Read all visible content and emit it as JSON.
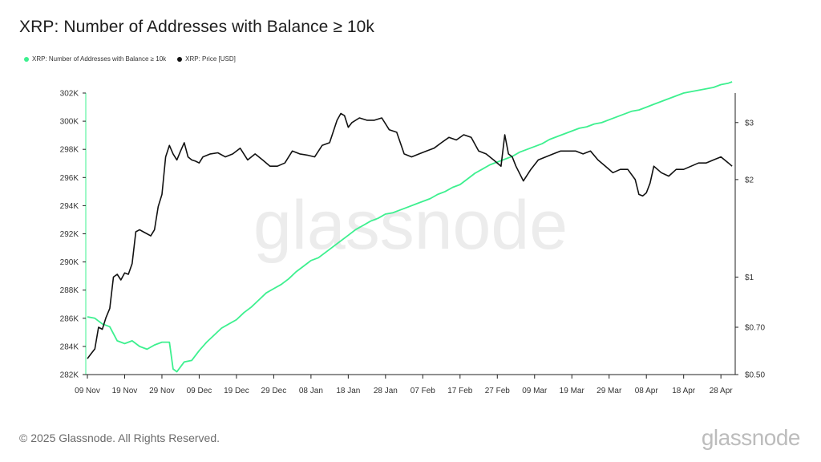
{
  "title": "XRP: Number of Addresses with Balance ≥ 10k",
  "footer": "© 2025 Glassnode. All Rights Reserved.",
  "brand": "glassnode",
  "watermark": "glassnode",
  "colors": {
    "addresses": "#3df08f",
    "price": "#111111"
  },
  "chart_data": {
    "type": "line",
    "legend_position": "top-left",
    "grid": false,
    "x_ticks": [
      "09 Nov",
      "19 Nov",
      "29 Nov",
      "09 Dec",
      "19 Dec",
      "29 Dec",
      "08 Jan",
      "18 Jan",
      "28 Jan",
      "07 Feb",
      "17 Feb",
      "27 Feb",
      "09 Mar",
      "19 Mar",
      "29 Mar",
      "08 Apr",
      "18 Apr",
      "28 Apr"
    ],
    "y_left": {
      "ticks": [
        "282K",
        "284K",
        "286K",
        "288K",
        "290K",
        "292K",
        "294K",
        "296K",
        "298K",
        "300K",
        "302K"
      ],
      "range": [
        282000,
        302000
      ]
    },
    "y_right": {
      "scale": "log",
      "ticks": [
        {
          "v": 0.5,
          "label": "$0.50"
        },
        {
          "v": 0.7,
          "label": "$0.70"
        },
        {
          "v": 1,
          "label": "$1"
        },
        {
          "v": 2,
          "label": "$2"
        },
        {
          "v": 3,
          "label": "$3"
        }
      ],
      "range": [
        0.5,
        3.7
      ]
    },
    "series": [
      {
        "name": "XRP: Number of Addresses with Balance ≥ 10k",
        "axis": "left",
        "x": [
          "2024-11-09",
          "2024-11-11",
          "2024-11-13",
          "2024-11-15",
          "2024-11-17",
          "2024-11-19",
          "2024-11-21",
          "2024-11-23",
          "2024-11-25",
          "2024-11-27",
          "2024-11-29",
          "2024-11-30",
          "2024-12-01",
          "2024-12-02",
          "2024-12-03",
          "2024-12-05",
          "2024-12-07",
          "2024-12-09",
          "2024-12-11",
          "2024-12-13",
          "2024-12-15",
          "2024-12-17",
          "2024-12-19",
          "2024-12-21",
          "2024-12-23",
          "2024-12-25",
          "2024-12-27",
          "2024-12-29",
          "2024-12-31",
          "2025-01-02",
          "2025-01-04",
          "2025-01-06",
          "2025-01-08",
          "2025-01-10",
          "2025-01-12",
          "2025-01-14",
          "2025-01-16",
          "2025-01-18",
          "2025-01-20",
          "2025-01-22",
          "2025-01-24",
          "2025-01-26",
          "2025-01-28",
          "2025-01-30",
          "2025-02-01",
          "2025-02-03",
          "2025-02-05",
          "2025-02-07",
          "2025-02-09",
          "2025-02-11",
          "2025-02-13",
          "2025-02-15",
          "2025-02-17",
          "2025-02-19",
          "2025-02-21",
          "2025-02-23",
          "2025-02-25",
          "2025-02-27",
          "2025-03-01",
          "2025-03-03",
          "2025-03-05",
          "2025-03-07",
          "2025-03-09",
          "2025-03-11",
          "2025-03-13",
          "2025-03-15",
          "2025-03-17",
          "2025-03-19",
          "2025-03-21",
          "2025-03-23",
          "2025-03-25",
          "2025-03-27",
          "2025-03-29",
          "2025-03-31",
          "2025-04-02",
          "2025-04-04",
          "2025-04-06",
          "2025-04-08",
          "2025-04-10",
          "2025-04-12",
          "2025-04-14",
          "2025-04-16",
          "2025-04-18",
          "2025-04-20",
          "2025-04-22",
          "2025-04-24",
          "2025-04-26",
          "2025-04-28",
          "2025-04-30",
          "2025-05-01"
        ],
        "values": [
          286100,
          286000,
          285600,
          285400,
          284400,
          284200,
          284400,
          284000,
          283800,
          284100,
          284300,
          284300,
          284300,
          282400,
          282200,
          282900,
          283000,
          283700,
          284300,
          284800,
          285300,
          285600,
          285900,
          286400,
          286800,
          287300,
          287800,
          288100,
          288400,
          288800,
          289300,
          289700,
          290100,
          290300,
          290700,
          291100,
          291500,
          291900,
          292300,
          292600,
          292900,
          293100,
          293400,
          293500,
          293700,
          293900,
          294100,
          294300,
          294500,
          294800,
          295000,
          295300,
          295500,
          295900,
          296300,
          296600,
          296900,
          297100,
          297300,
          297500,
          297800,
          298000,
          298200,
          298400,
          298700,
          298900,
          299100,
          299300,
          299500,
          299600,
          299800,
          299900,
          300100,
          300300,
          300500,
          300700,
          300800,
          301000,
          301200,
          301400,
          301600,
          301800,
          302000,
          302100,
          302200,
          302300,
          302400,
          302600,
          302700,
          302800
        ]
      },
      {
        "name": "XRP: Price [USD]",
        "axis": "right",
        "x": [
          "2024-11-09",
          "2024-11-10",
          "2024-11-11",
          "2024-11-12",
          "2024-11-13",
          "2024-11-14",
          "2024-11-15",
          "2024-11-16",
          "2024-11-17",
          "2024-11-18",
          "2024-11-19",
          "2024-11-20",
          "2024-11-21",
          "2024-11-22",
          "2024-11-23",
          "2024-11-24",
          "2024-11-25",
          "2024-11-26",
          "2024-11-27",
          "2024-11-28",
          "2024-11-29",
          "2024-11-30",
          "2024-12-01",
          "2024-12-02",
          "2024-12-03",
          "2024-12-04",
          "2024-12-05",
          "2024-12-06",
          "2024-12-07",
          "2024-12-08",
          "2024-12-09",
          "2024-12-10",
          "2024-12-12",
          "2024-12-14",
          "2024-12-16",
          "2024-12-18",
          "2024-12-20",
          "2024-12-22",
          "2024-12-24",
          "2024-12-26",
          "2024-12-28",
          "2024-12-30",
          "2025-01-01",
          "2025-01-03",
          "2025-01-05",
          "2025-01-07",
          "2025-01-09",
          "2025-01-11",
          "2025-01-13",
          "2025-01-15",
          "2025-01-16",
          "2025-01-17",
          "2025-01-18",
          "2025-01-19",
          "2025-01-21",
          "2025-01-23",
          "2025-01-25",
          "2025-01-27",
          "2025-01-29",
          "2025-01-31",
          "2025-02-02",
          "2025-02-04",
          "2025-02-06",
          "2025-02-08",
          "2025-02-10",
          "2025-02-12",
          "2025-02-14",
          "2025-02-16",
          "2025-02-18",
          "2025-02-20",
          "2025-02-22",
          "2025-02-24",
          "2025-02-26",
          "2025-02-28",
          "2025-03-01",
          "2025-03-02",
          "2025-03-03",
          "2025-03-04",
          "2025-03-06",
          "2025-03-08",
          "2025-03-10",
          "2025-03-12",
          "2025-03-14",
          "2025-03-16",
          "2025-03-18",
          "2025-03-20",
          "2025-03-22",
          "2025-03-24",
          "2025-03-26",
          "2025-03-28",
          "2025-03-30",
          "2025-04-01",
          "2025-04-03",
          "2025-04-05",
          "2025-04-06",
          "2025-04-07",
          "2025-04-08",
          "2025-04-09",
          "2025-04-10",
          "2025-04-12",
          "2025-04-14",
          "2025-04-16",
          "2025-04-18",
          "2025-04-20",
          "2025-04-22",
          "2025-04-24",
          "2025-04-26",
          "2025-04-28",
          "2025-04-30",
          "2025-05-01"
        ],
        "values": [
          0.56,
          0.58,
          0.6,
          0.7,
          0.69,
          0.75,
          0.8,
          1.0,
          1.02,
          0.98,
          1.03,
          1.02,
          1.1,
          1.38,
          1.4,
          1.38,
          1.36,
          1.34,
          1.4,
          1.65,
          1.8,
          2.35,
          2.55,
          2.4,
          2.3,
          2.45,
          2.6,
          2.35,
          2.3,
          2.28,
          2.25,
          2.35,
          2.4,
          2.42,
          2.35,
          2.4,
          2.5,
          2.3,
          2.4,
          2.3,
          2.2,
          2.2,
          2.25,
          2.45,
          2.4,
          2.38,
          2.35,
          2.55,
          2.6,
          3.05,
          3.2,
          3.15,
          2.9,
          3.0,
          3.1,
          3.05,
          3.05,
          3.1,
          2.85,
          2.8,
          2.4,
          2.35,
          2.4,
          2.45,
          2.5,
          2.6,
          2.7,
          2.65,
          2.75,
          2.7,
          2.45,
          2.4,
          2.3,
          2.2,
          2.75,
          2.4,
          2.35,
          2.2,
          1.98,
          2.15,
          2.3,
          2.35,
          2.4,
          2.45,
          2.45,
          2.45,
          2.4,
          2.45,
          2.3,
          2.2,
          2.1,
          2.15,
          2.15,
          2.0,
          1.8,
          1.78,
          1.82,
          1.95,
          2.2,
          2.1,
          2.05,
          2.15,
          2.15,
          2.2,
          2.25,
          2.25,
          2.3,
          2.35,
          2.25,
          2.2
        ]
      }
    ]
  }
}
